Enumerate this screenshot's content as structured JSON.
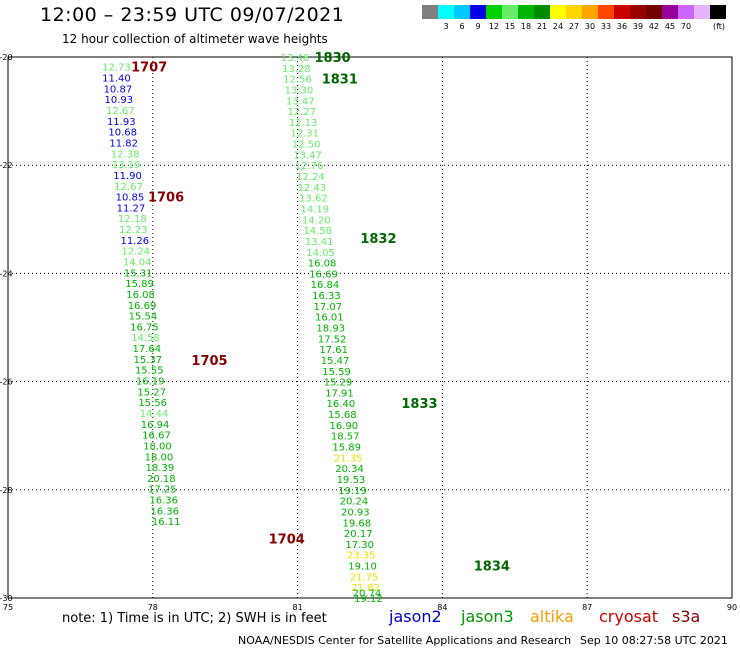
{
  "header": {
    "title": "12:00 – 23:59 UTC 09/07/2021",
    "subtitle": "12 hour collection of altimeter wave heights"
  },
  "scale": {
    "colors": [
      "#808080",
      "#00ffff",
      "#00c8ff",
      "#0000e6",
      "#00d200",
      "#66ee66",
      "#00b400",
      "#008c00",
      "#ffff00",
      "#ffd700",
      "#ffa500",
      "#ff4500",
      "#cc0000",
      "#990000",
      "#700000",
      "#990099",
      "#cc66ff",
      "#e6b3ff",
      "#000000"
    ],
    "labels": [
      "3",
      "6",
      "9",
      "12",
      "15",
      "18",
      "21",
      "24",
      "27",
      "30",
      "33",
      "36",
      "39",
      "42",
      "45",
      "70"
    ],
    "unit": "(ft)"
  },
  "footer": {
    "note": "note:  1) Time is in UTC;  2) SWH is in feet",
    "credit": "NOAA/NESDIS Center for Satellite Applications and Research",
    "timestamp": "Sep 10 08:27:58 UTC 2021"
  },
  "missions": [
    {
      "name": "jason2",
      "color": "#0000cc"
    },
    {
      "name": "jason3",
      "color": "#009900"
    },
    {
      "name": "altika",
      "color": "#ff9900"
    },
    {
      "name": "cryosat",
      "color": "#cc0000"
    },
    {
      "name": "s3a",
      "color": "#880000"
    }
  ],
  "chart_data": {
    "type": "scatter",
    "title": "12:00 – 23:59 UTC 09/07/2021",
    "xlabel": "",
    "ylabel": "",
    "xlim": [
      75,
      90
    ],
    "ylim": [
      -30,
      -20
    ],
    "xticks": [
      75,
      78,
      81,
      84,
      87,
      90
    ],
    "yticks": [
      -20,
      -22,
      -24,
      -26,
      -28,
      -30
    ],
    "grid": true,
    "point_labels": "significant wave height (ft)",
    "series": [
      {
        "points": [
          {
            "x": 76.95,
            "y": -20.18,
            "v": "12.73"
          },
          {
            "x": 76.95,
            "y": -20.38,
            "v": "11.40"
          },
          {
            "x": 76.98,
            "y": -20.58,
            "v": "10.87"
          },
          {
            "x": 77.0,
            "y": -20.78,
            "v": "10.93"
          },
          {
            "x": 77.03,
            "y": -20.98,
            "v": "12.67"
          },
          {
            "x": 77.05,
            "y": -21.18,
            "v": "11.93"
          },
          {
            "x": 77.08,
            "y": -21.38,
            "v": "10.68"
          },
          {
            "x": 77.1,
            "y": -21.58,
            "v": "11.82"
          },
          {
            "x": 77.13,
            "y": -21.78,
            "v": "12.38"
          },
          {
            "x": 77.15,
            "y": -21.98,
            "v": "13.19"
          },
          {
            "x": 77.18,
            "y": -22.18,
            "v": "11.90"
          },
          {
            "x": 77.2,
            "y": -22.38,
            "v": "12.67"
          },
          {
            "x": 77.23,
            "y": -22.58,
            "v": "10.85"
          },
          {
            "x": 77.25,
            "y": -22.78,
            "v": "11.27"
          },
          {
            "x": 77.28,
            "y": -22.98,
            "v": "12.18"
          },
          {
            "x": 77.3,
            "y": -23.18,
            "v": "12.23"
          },
          {
            "x": 77.33,
            "y": -23.38,
            "v": "11.26"
          },
          {
            "x": 77.35,
            "y": -23.58,
            "v": "12.24"
          },
          {
            "x": 77.38,
            "y": -23.78,
            "v": "14.04"
          },
          {
            "x": 77.4,
            "y": -23.98,
            "v": "15.31"
          },
          {
            "x": 77.43,
            "y": -24.18,
            "v": "15.89"
          },
          {
            "x": 77.45,
            "y": -24.38,
            "v": "16.08"
          },
          {
            "x": 77.48,
            "y": -24.58,
            "v": "16.69"
          },
          {
            "x": 77.5,
            "y": -24.78,
            "v": "15.54"
          },
          {
            "x": 77.53,
            "y": -24.98,
            "v": "16.75"
          },
          {
            "x": 77.55,
            "y": -25.18,
            "v": "14.58"
          },
          {
            "x": 77.58,
            "y": -25.38,
            "v": "17.64"
          },
          {
            "x": 77.6,
            "y": -25.58,
            "v": "15.37"
          },
          {
            "x": 77.63,
            "y": -25.78,
            "v": "15.55"
          },
          {
            "x": 77.65,
            "y": -25.98,
            "v": "16.19"
          },
          {
            "x": 77.68,
            "y": -26.18,
            "v": "15.27"
          },
          {
            "x": 77.7,
            "y": -26.38,
            "v": "15.56"
          },
          {
            "x": 77.73,
            "y": -26.58,
            "v": "14.44"
          },
          {
            "x": 77.75,
            "y": -26.78,
            "v": "16.94"
          },
          {
            "x": 77.78,
            "y": -26.98,
            "v": "16.67"
          },
          {
            "x": 77.8,
            "y": -27.18,
            "v": "18.00"
          },
          {
            "x": 77.83,
            "y": -27.38,
            "v": "18.00"
          },
          {
            "x": 77.85,
            "y": -27.58,
            "v": "18.39"
          },
          {
            "x": 77.88,
            "y": -27.78,
            "v": "20.18"
          },
          {
            "x": 77.9,
            "y": -27.98,
            "v": "17.25"
          },
          {
            "x": 77.93,
            "y": -28.18,
            "v": "16.36"
          },
          {
            "x": 77.95,
            "y": -28.38,
            "v": "16.36"
          },
          {
            "x": 77.98,
            "y": -28.58,
            "v": "16.11"
          }
        ]
      },
      {
        "points": [
          {
            "x": 80.65,
            "y": -20.0,
            "v": "13.46"
          },
          {
            "x": 80.68,
            "y": -20.2,
            "v": "13.28"
          },
          {
            "x": 80.7,
            "y": -20.4,
            "v": "12.56"
          },
          {
            "x": 80.73,
            "y": -20.6,
            "v": "13.30"
          },
          {
            "x": 80.76,
            "y": -20.8,
            "v": "13.47"
          },
          {
            "x": 80.79,
            "y": -21.0,
            "v": "12.27"
          },
          {
            "x": 80.82,
            "y": -21.2,
            "v": "12.13"
          },
          {
            "x": 80.85,
            "y": -21.4,
            "v": "12.31"
          },
          {
            "x": 80.88,
            "y": -21.6,
            "v": "12.50"
          },
          {
            "x": 80.91,
            "y": -21.8,
            "v": "13.47"
          },
          {
            "x": 80.94,
            "y": -22.0,
            "v": "12.76"
          },
          {
            "x": 80.97,
            "y": -22.2,
            "v": "12.24"
          },
          {
            "x": 81.0,
            "y": -22.4,
            "v": "12.43"
          },
          {
            "x": 81.03,
            "y": -22.6,
            "v": "13.62"
          },
          {
            "x": 81.06,
            "y": -22.8,
            "v": "14.19"
          },
          {
            "x": 81.09,
            "y": -23.0,
            "v": "14.20"
          },
          {
            "x": 81.12,
            "y": -23.2,
            "v": "14.58"
          },
          {
            "x": 81.15,
            "y": -23.4,
            "v": "13.41"
          },
          {
            "x": 81.18,
            "y": -23.6,
            "v": "14.05"
          },
          {
            "x": 81.21,
            "y": -23.8,
            "v": "16.08"
          },
          {
            "x": 81.24,
            "y": -24.0,
            "v": "16.69"
          },
          {
            "x": 81.27,
            "y": -24.2,
            "v": "16.84"
          },
          {
            "x": 81.3,
            "y": -24.4,
            "v": "16.33"
          },
          {
            "x": 81.33,
            "y": -24.6,
            "v": "17.07"
          },
          {
            "x": 81.36,
            "y": -24.8,
            "v": "16.01"
          },
          {
            "x": 81.39,
            "y": -25.0,
            "v": "18.93"
          },
          {
            "x": 81.42,
            "y": -25.2,
            "v": "17.52"
          },
          {
            "x": 81.45,
            "y": -25.4,
            "v": "17.61"
          },
          {
            "x": 81.48,
            "y": -25.6,
            "v": "15.47"
          },
          {
            "x": 81.51,
            "y": -25.8,
            "v": "15.59"
          },
          {
            "x": 81.54,
            "y": -26.0,
            "v": "15.29"
          },
          {
            "x": 81.57,
            "y": -26.2,
            "v": "17.91"
          },
          {
            "x": 81.6,
            "y": -26.4,
            "v": "16.40"
          },
          {
            "x": 81.63,
            "y": -26.6,
            "v": "15.68"
          },
          {
            "x": 81.66,
            "y": -26.8,
            "v": "16.90"
          },
          {
            "x": 81.69,
            "y": -27.0,
            "v": "18.57"
          },
          {
            "x": 81.72,
            "y": -27.2,
            "v": "15.89"
          },
          {
            "x": 81.75,
            "y": -27.4,
            "v": "21.35"
          },
          {
            "x": 81.78,
            "y": -27.6,
            "v": "20.34"
          },
          {
            "x": 81.81,
            "y": -27.8,
            "v": "19.53"
          },
          {
            "x": 81.84,
            "y": -28.0,
            "v": "19.19"
          },
          {
            "x": 81.87,
            "y": -28.2,
            "v": "20.24"
          },
          {
            "x": 81.9,
            "y": -28.4,
            "v": "20.93"
          },
          {
            "x": 81.93,
            "y": -28.6,
            "v": "19.68"
          },
          {
            "x": 81.96,
            "y": -28.8,
            "v": "20.17"
          },
          {
            "x": 81.99,
            "y": -29.0,
            "v": "17.30"
          },
          {
            "x": 82.02,
            "y": -29.2,
            "v": "23.35"
          },
          {
            "x": 82.05,
            "y": -29.4,
            "v": "19.10"
          },
          {
            "x": 82.08,
            "y": -29.6,
            "v": "21.75"
          },
          {
            "x": 82.11,
            "y": -29.8,
            "v": "21.82"
          },
          {
            "x": 82.14,
            "y": -29.9,
            "v": "20.74"
          },
          {
            "x": 82.17,
            "y": -30.0,
            "v": "19.12"
          }
        ]
      }
    ],
    "time_labels": [
      {
        "x": 77.55,
        "y": -20.18,
        "t": "1707",
        "color": "#880000"
      },
      {
        "x": 77.9,
        "y": -22.58,
        "t": "1706",
        "color": "#880000"
      },
      {
        "x": 78.8,
        "y": -25.6,
        "t": "1705",
        "color": "#880000"
      },
      {
        "x": 80.4,
        "y": -28.9,
        "t": "1704",
        "color": "#880000"
      },
      {
        "x": 81.35,
        "y": -20.0,
        "t": "1830",
        "color": "#006600"
      },
      {
        "x": 81.5,
        "y": -20.4,
        "t": "1831",
        "color": "#006600"
      },
      {
        "x": 82.3,
        "y": -23.35,
        "t": "1832",
        "color": "#006600"
      },
      {
        "x": 83.15,
        "y": -26.4,
        "t": "1833",
        "color": "#006600"
      },
      {
        "x": 84.65,
        "y": -29.4,
        "t": "1834",
        "color": "#006600"
      }
    ]
  }
}
